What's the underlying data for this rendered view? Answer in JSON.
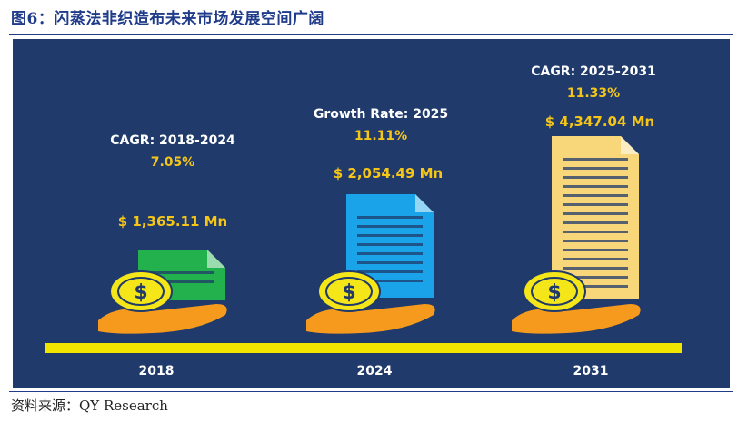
{
  "figure": {
    "title": "图6：闪蒸法非织造布未来市场发展空间广阔",
    "source": "资料来源：QY Research"
  },
  "colors": {
    "panel": "#1f3a6b",
    "label_white": "#ffffff",
    "label_gold": "#f5c518",
    "timeline": "#f2e600",
    "doc_2018": "#22b14c",
    "doc_2024": "#1aa3e8",
    "doc_2031": "#f7d77a",
    "coin": "#f5e619",
    "hand": "#f59a1c"
  },
  "chart_data": {
    "type": "infographic",
    "unit": "Mn",
    "x": [
      "2018",
      "2024",
      "2031"
    ],
    "values": [
      1365.11,
      2054.49,
      4347.04
    ],
    "value_labels": [
      "$ 1,365.11 Mn",
      "$ 2,054.49 Mn",
      "$ 4,347.04 Mn"
    ],
    "annotations": [
      {
        "label": "CAGR: 2018-2024",
        "value": "7.05%"
      },
      {
        "label": "Growth Rate: 2025",
        "value": "11.11%"
      },
      {
        "label": "CAGR: 2025-2031",
        "value": "11.33%"
      }
    ],
    "icons": [
      "money-icon",
      "document-icon",
      "document-icon"
    ]
  }
}
